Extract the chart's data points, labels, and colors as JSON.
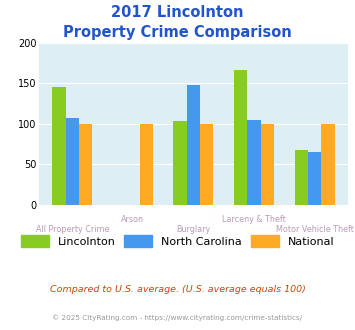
{
  "title_line1": "2017 Lincolnton",
  "title_line2": "Property Crime Comparison",
  "title_color": "#2255cc",
  "categories": [
    "All Property Crime",
    "Arson",
    "Burglary",
    "Larceny & Theft",
    "Motor Vehicle Theft"
  ],
  "series_names": [
    "Lincolnton",
    "North Carolina",
    "National"
  ],
  "series_colors": [
    "#88cc22",
    "#4499ee",
    "#ffaa22"
  ],
  "values": [
    [
      146,
      null,
      104,
      166,
      68
    ],
    [
      107,
      null,
      148,
      105,
      65
    ],
    [
      100,
      100,
      100,
      100,
      100
    ]
  ],
  "ylim": [
    0,
    200
  ],
  "yticks": [
    0,
    50,
    100,
    150,
    200
  ],
  "background_color": "#ddeef5",
  "grid_color": "#ffffff",
  "footer1": "Compared to U.S. average. (U.S. average equals 100)",
  "footer2": "© 2025 CityRating.com - https://www.cityrating.com/crime-statistics/",
  "footer1_color": "#cc4400",
  "footer2_color": "#999999",
  "xlabel_color": "#bb99bb",
  "bar_width": 0.22,
  "stagger_high": [
    1,
    3
  ],
  "stagger_low": [
    0,
    2,
    4
  ]
}
